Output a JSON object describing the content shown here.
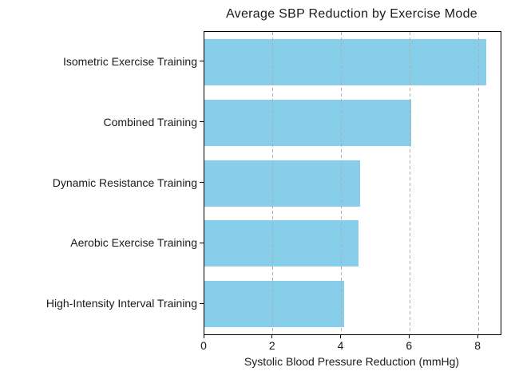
{
  "chart_data": {
    "type": "bar",
    "orientation": "horizontal",
    "title": "Average SBP Reduction by Exercise Mode",
    "xlabel": "Systolic Blood Pressure Reduction (mmHg)",
    "ylabel": "",
    "categories": [
      "Isometric Exercise Training",
      "Combined Training",
      "Dynamic Resistance Training",
      "Aerobic Exercise Training",
      "High-Intensity Interval Training"
    ],
    "values": [
      8.24,
      6.04,
      4.55,
      4.49,
      4.08
    ],
    "xticks": [
      0,
      2,
      4,
      6,
      8
    ],
    "xlim": [
      0,
      8.65
    ],
    "grid": "vertical-dashed-over-bars",
    "legend": "none",
    "bar_color": "#87CEEB",
    "grid_color": "#b0b0b0",
    "axis_color": "#000000",
    "text_color": "#1a1a1a",
    "background_color": "#ffffff"
  }
}
